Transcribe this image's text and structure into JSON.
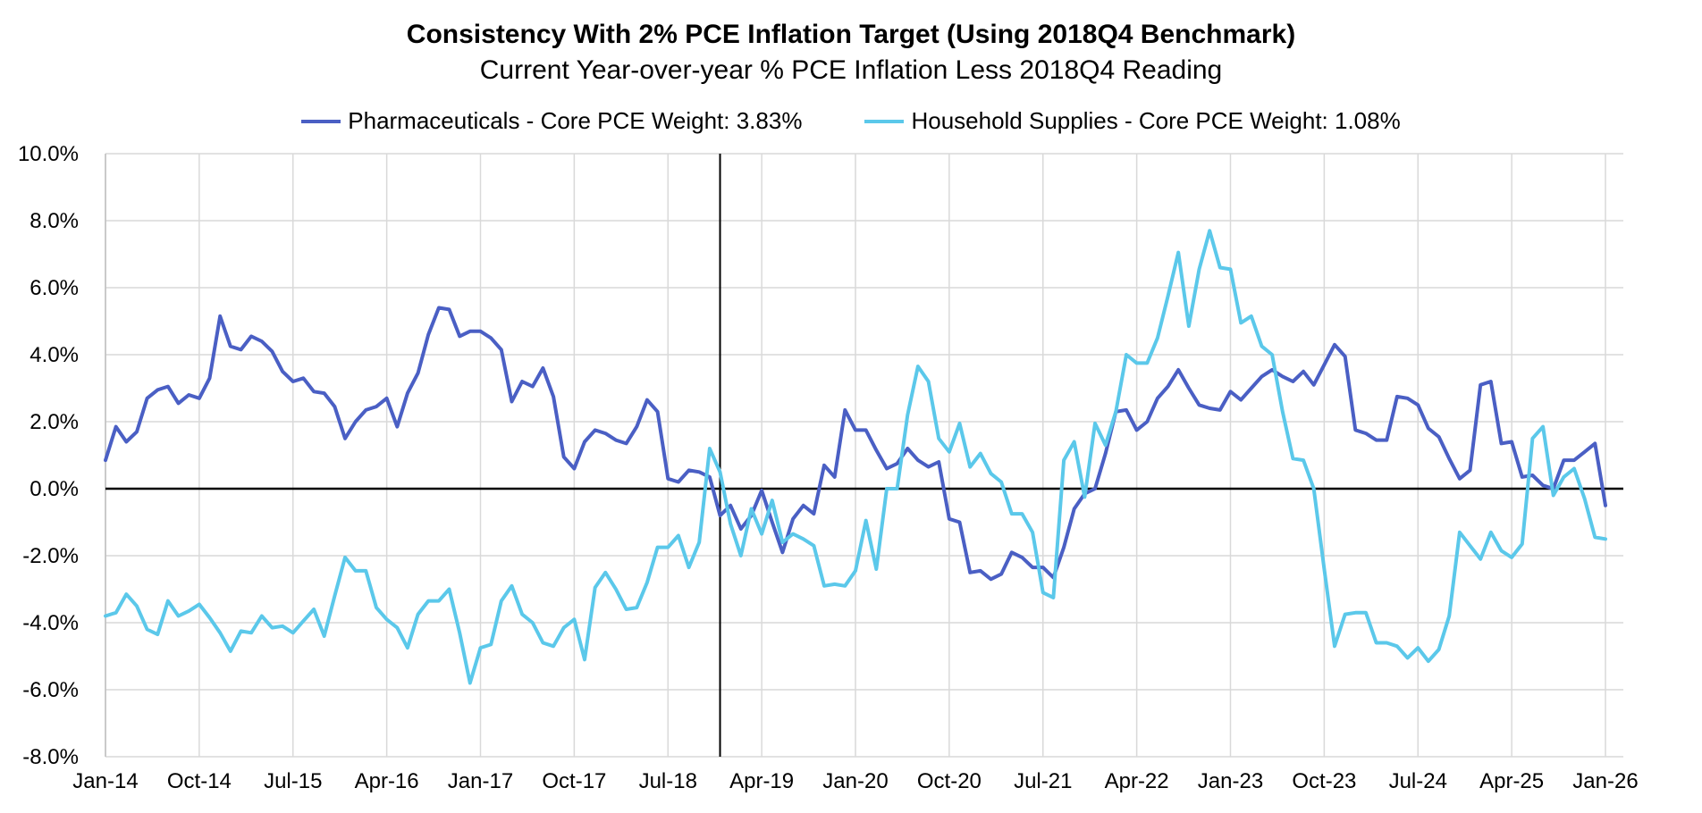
{
  "chart_data": {
    "type": "line",
    "title": "Consistency With 2% PCE Inflation Target (Using 2018Q4 Benchmark)",
    "subtitle": "Current Year-over-year % PCE Inflation Less 2018Q4 Reading",
    "legend_position": "top-center",
    "grid": true,
    "ylim": [
      -8.0,
      10.0
    ],
    "y_ticks": [
      "10.0%",
      "8.0%",
      "6.0%",
      "4.0%",
      "2.0%",
      "0.0%",
      "-2.0%",
      "-4.0%",
      "-6.0%",
      "-8.0%"
    ],
    "x_ticks": [
      "Jan-14",
      "Oct-14",
      "Jul-15",
      "Apr-16",
      "Jan-17",
      "Oct-17",
      "Jul-18",
      "Apr-19",
      "Jan-20",
      "Oct-20",
      "Jul-21",
      "Apr-22",
      "Jan-23",
      "Oct-23",
      "Jul-24",
      "Apr-25",
      "Jan-26"
    ],
    "x_start": "Jan-14",
    "x_end": "Jan-26",
    "benchmark_line": "Dec-18",
    "series": [
      {
        "name": "Pharmaceuticals - Core PCE Weight: 3.83%",
        "color": "#4a5fc4",
        "values": [
          0.85,
          1.85,
          1.4,
          1.7,
          2.7,
          2.95,
          3.05,
          2.55,
          2.8,
          2.7,
          3.3,
          5.15,
          4.25,
          4.15,
          4.55,
          4.4,
          4.1,
          3.5,
          3.2,
          3.3,
          2.9,
          2.85,
          2.45,
          1.5,
          2.0,
          2.35,
          2.45,
          2.7,
          1.85,
          2.85,
          3.45,
          4.6,
          5.4,
          5.35,
          4.55,
          4.7,
          4.7,
          4.5,
          4.15,
          2.6,
          3.2,
          3.05,
          3.6,
          2.75,
          0.95,
          0.6,
          1.4,
          1.75,
          1.65,
          1.45,
          1.35,
          1.85,
          2.65,
          2.3,
          0.3,
          0.2,
          0.55,
          0.5,
          0.35,
          -0.8,
          -0.5,
          -1.2,
          -0.8,
          -0.05,
          -1.0,
          -1.9,
          -0.9,
          -0.5,
          -0.75,
          0.7,
          0.35,
          2.35,
          1.75,
          1.75,
          1.15,
          0.6,
          0.75,
          1.2,
          0.85,
          0.65,
          0.8,
          -0.9,
          -1.0,
          -2.5,
          -2.45,
          -2.7,
          -2.55,
          -1.9,
          -2.05,
          -2.35,
          -2.35,
          -2.65,
          -1.75,
          -0.6,
          -0.15,
          0.0,
          1.05,
          2.3,
          2.35,
          1.75,
          2.0,
          2.7,
          3.05,
          3.55,
          3.0,
          2.5,
          2.4,
          2.35,
          2.9,
          2.65,
          3.0,
          3.35,
          3.55,
          3.35,
          3.2,
          3.5,
          3.1,
          3.7,
          4.3,
          3.95,
          1.75,
          1.65,
          1.45,
          1.45,
          2.75,
          2.7,
          2.5,
          1.8,
          1.55,
          0.9,
          0.3,
          0.55,
          3.1,
          3.2,
          1.35,
          1.4,
          0.35,
          0.4,
          0.1,
          0.0,
          0.85,
          0.85,
          1.1,
          1.35,
          -0.5
        ]
      },
      {
        "name": "Household Supplies - Core PCE Weight: 1.08%",
        "color": "#5bc8ea",
        "values": [
          -3.8,
          -3.7,
          -3.15,
          -3.5,
          -4.2,
          -4.35,
          -3.35,
          -3.8,
          -3.65,
          -3.45,
          -3.85,
          -4.3,
          -4.85,
          -4.25,
          -4.3,
          -3.8,
          -4.15,
          -4.1,
          -4.3,
          -3.95,
          -3.6,
          -4.4,
          -3.2,
          -2.05,
          -2.45,
          -2.45,
          -3.55,
          -3.9,
          -4.15,
          -4.75,
          -3.75,
          -3.35,
          -3.35,
          -3.0,
          -4.3,
          -5.8,
          -4.75,
          -4.65,
          -3.35,
          -2.9,
          -3.75,
          -4.0,
          -4.6,
          -4.7,
          -4.15,
          -3.9,
          -5.1,
          -2.95,
          -2.5,
          -3.0,
          -3.6,
          -3.55,
          -2.8,
          -1.75,
          -1.75,
          -1.4,
          -2.35,
          -1.6,
          1.2,
          0.5,
          -1.05,
          -2.0,
          -0.6,
          -1.35,
          -0.35,
          -1.6,
          -1.35,
          -1.5,
          -1.7,
          -2.9,
          -2.85,
          -2.9,
          -2.45,
          -0.95,
          -2.4,
          0.0,
          0.0,
          2.2,
          3.65,
          3.2,
          1.5,
          1.1,
          1.95,
          0.65,
          1.05,
          0.45,
          0.2,
          -0.75,
          -0.75,
          -1.3,
          -3.1,
          -3.25,
          0.85,
          1.4,
          -0.25,
          1.95,
          1.3,
          2.3,
          4.0,
          3.75,
          3.75,
          4.5,
          5.75,
          7.05,
          4.85,
          6.55,
          7.7,
          6.6,
          6.55,
          4.95,
          5.15,
          4.25,
          4.0,
          2.3,
          0.9,
          0.85,
          0.0,
          -2.4,
          -4.7,
          -3.75,
          -3.7,
          -3.7,
          -4.6,
          -4.6,
          -4.7,
          -5.05,
          -4.75,
          -5.15,
          -4.8,
          -3.8,
          -1.3,
          -1.7,
          -2.1,
          -1.3,
          -1.85,
          -2.05,
          -1.65,
          1.5,
          1.85,
          -0.2,
          0.35,
          0.6,
          -0.3,
          -1.45,
          -1.5
        ]
      }
    ]
  }
}
